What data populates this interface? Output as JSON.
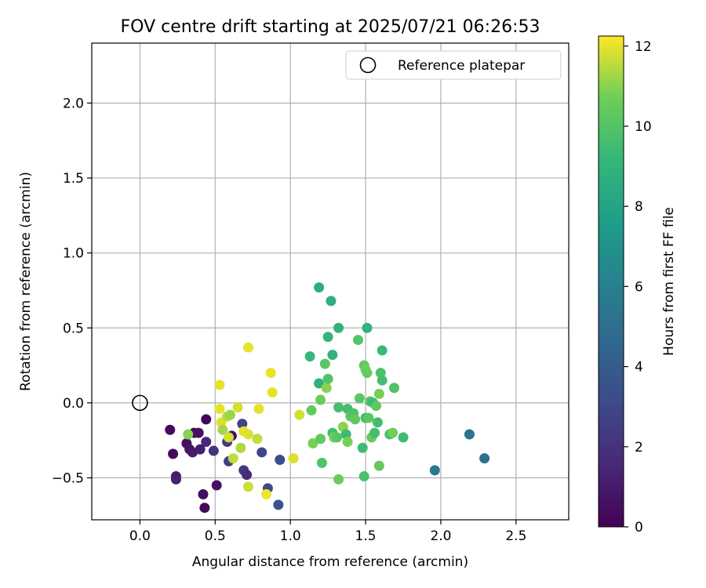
{
  "chart_data": {
    "type": "scatter",
    "title": "FOV centre drift starting at 2025/07/21 06:26:53",
    "xlabel": "Angular distance from reference (arcmin)",
    "ylabel": "Rotation from reference (arcmin)",
    "xlim": [
      -0.32,
      2.85
    ],
    "ylim": [
      -0.78,
      2.4
    ],
    "xticks": [
      "0.0",
      "0.5",
      "1.0",
      "1.5",
      "2.0",
      "2.5"
    ],
    "xtick_values": [
      0.0,
      0.5,
      1.0,
      1.5,
      2.0,
      2.5
    ],
    "yticks": [
      "−0.5",
      "0.0",
      "0.5",
      "1.0",
      "1.5",
      "2.0"
    ],
    "ytick_values": [
      -0.5,
      0.0,
      0.5,
      1.0,
      1.5,
      2.0
    ],
    "grid": true,
    "legend": {
      "position": "top-right",
      "entries": [
        "Reference platepar"
      ]
    },
    "reference_point": {
      "x": 0.0,
      "y": 0.0
    },
    "colorbar": {
      "label": "Hours from first FF file",
      "colormap": "viridis",
      "range": [
        0,
        12.25
      ],
      "ticks": [
        "0",
        "2",
        "4",
        "6",
        "8",
        "10",
        "12"
      ],
      "tick_values": [
        0,
        2,
        4,
        6,
        8,
        10,
        12
      ]
    },
    "points": [
      {
        "x": 0.2,
        "y": -0.18,
        "c": 0.3
      },
      {
        "x": 0.22,
        "y": -0.34,
        "c": 0.3
      },
      {
        "x": 0.24,
        "y": -0.49,
        "c": 0.9
      },
      {
        "x": 0.24,
        "y": -0.51,
        "c": 1.2
      },
      {
        "x": 0.31,
        "y": -0.27,
        "c": 0.6
      },
      {
        "x": 0.33,
        "y": -0.31,
        "c": 0.8
      },
      {
        "x": 0.35,
        "y": -0.33,
        "c": 1.0
      },
      {
        "x": 0.36,
        "y": -0.2,
        "c": 0.4
      },
      {
        "x": 0.39,
        "y": -0.2,
        "c": 0.6
      },
      {
        "x": 0.4,
        "y": -0.31,
        "c": 1.1
      },
      {
        "x": 0.42,
        "y": -0.61,
        "c": 0.5
      },
      {
        "x": 0.43,
        "y": -0.7,
        "c": 0.3
      },
      {
        "x": 0.44,
        "y": -0.11,
        "c": 0.2
      },
      {
        "x": 0.44,
        "y": -0.26,
        "c": 1.6
      },
      {
        "x": 0.49,
        "y": -0.32,
        "c": 2.0
      },
      {
        "x": 0.51,
        "y": -0.55,
        "c": 0.6
      },
      {
        "x": 0.58,
        "y": -0.26,
        "c": 2.5
      },
      {
        "x": 0.59,
        "y": -0.39,
        "c": 2.7
      },
      {
        "x": 0.61,
        "y": -0.22,
        "c": 0.4
      },
      {
        "x": 0.68,
        "y": -0.14,
        "c": 2.9
      },
      {
        "x": 0.69,
        "y": -0.45,
        "c": 2.2
      },
      {
        "x": 0.71,
        "y": -0.48,
        "c": 1.7
      },
      {
        "x": 0.81,
        "y": -0.33,
        "c": 3.0
      },
      {
        "x": 0.85,
        "y": -0.57,
        "c": 3.1
      },
      {
        "x": 0.92,
        "y": -0.68,
        "c": 3.5
      },
      {
        "x": 0.93,
        "y": -0.38,
        "c": 3.3
      },
      {
        "x": 0.32,
        "y": -0.21,
        "c": 11.0
      },
      {
        "x": 0.53,
        "y": 0.12,
        "c": 12.0
      },
      {
        "x": 0.53,
        "y": -0.04,
        "c": 12.0
      },
      {
        "x": 0.54,
        "y": -0.13,
        "c": 11.9
      },
      {
        "x": 0.55,
        "y": -0.18,
        "c": 11.3
      },
      {
        "x": 0.58,
        "y": -0.09,
        "c": 11.5
      },
      {
        "x": 0.59,
        "y": -0.23,
        "c": 11.8
      },
      {
        "x": 0.6,
        "y": -0.08,
        "c": 11.2
      },
      {
        "x": 0.62,
        "y": -0.37,
        "c": 11.6
      },
      {
        "x": 0.65,
        "y": -0.03,
        "c": 11.8
      },
      {
        "x": 0.67,
        "y": -0.3,
        "c": 11.4
      },
      {
        "x": 0.69,
        "y": -0.19,
        "c": 12.0
      },
      {
        "x": 0.72,
        "y": 0.37,
        "c": 12.0
      },
      {
        "x": 0.72,
        "y": -0.21,
        "c": 11.9
      },
      {
        "x": 0.72,
        "y": -0.56,
        "c": 11.7
      },
      {
        "x": 0.78,
        "y": -0.24,
        "c": 11.6
      },
      {
        "x": 0.79,
        "y": -0.04,
        "c": 12.0
      },
      {
        "x": 0.84,
        "y": -0.61,
        "c": 12.1
      },
      {
        "x": 0.87,
        "y": 0.2,
        "c": 12.0
      },
      {
        "x": 0.88,
        "y": 0.07,
        "c": 12.0
      },
      {
        "x": 1.02,
        "y": -0.37,
        "c": 11.9
      },
      {
        "x": 1.06,
        "y": -0.08,
        "c": 11.8
      },
      {
        "x": 1.13,
        "y": 0.31,
        "c": 9.2
      },
      {
        "x": 1.14,
        "y": -0.05,
        "c": 10.4
      },
      {
        "x": 1.15,
        "y": -0.27,
        "c": 10.8
      },
      {
        "x": 1.19,
        "y": 0.77,
        "c": 8.6
      },
      {
        "x": 1.19,
        "y": 0.13,
        "c": 8.8
      },
      {
        "x": 1.2,
        "y": 0.02,
        "c": 10.6
      },
      {
        "x": 1.2,
        "y": -0.24,
        "c": 10.3
      },
      {
        "x": 1.21,
        "y": -0.4,
        "c": 9.9
      },
      {
        "x": 1.23,
        "y": 0.26,
        "c": 10.2
      },
      {
        "x": 1.24,
        "y": 0.1,
        "c": 11.0
      },
      {
        "x": 1.25,
        "y": 0.44,
        "c": 9.0
      },
      {
        "x": 1.25,
        "y": 0.16,
        "c": 10.0
      },
      {
        "x": 1.27,
        "y": 0.68,
        "c": 8.7
      },
      {
        "x": 1.28,
        "y": 0.32,
        "c": 8.9
      },
      {
        "x": 1.28,
        "y": -0.2,
        "c": 9.6
      },
      {
        "x": 1.29,
        "y": -0.23,
        "c": 10.8
      },
      {
        "x": 1.31,
        "y": -0.23,
        "c": 10.1
      },
      {
        "x": 1.32,
        "y": 0.5,
        "c": 8.9
      },
      {
        "x": 1.32,
        "y": -0.03,
        "c": 9.7
      },
      {
        "x": 1.32,
        "y": -0.51,
        "c": 10.6
      },
      {
        "x": 1.35,
        "y": -0.16,
        "c": 11.0
      },
      {
        "x": 1.37,
        "y": -0.21,
        "c": 9.4
      },
      {
        "x": 1.38,
        "y": -0.04,
        "c": 9.6
      },
      {
        "x": 1.38,
        "y": -0.26,
        "c": 10.8
      },
      {
        "x": 1.4,
        "y": -0.09,
        "c": 10.2
      },
      {
        "x": 1.42,
        "y": -0.07,
        "c": 9.8
      },
      {
        "x": 1.43,
        "y": -0.11,
        "c": 10.4
      },
      {
        "x": 1.45,
        "y": 0.42,
        "c": 10.0
      },
      {
        "x": 1.46,
        "y": 0.03,
        "c": 10.2
      },
      {
        "x": 1.48,
        "y": -0.3,
        "c": 9.4
      },
      {
        "x": 1.49,
        "y": -0.49,
        "c": 9.8
      },
      {
        "x": 1.49,
        "y": 0.25,
        "c": 10.4
      },
      {
        "x": 1.5,
        "y": 0.22,
        "c": 10.7
      },
      {
        "x": 1.5,
        "y": -0.1,
        "c": 9.5
      },
      {
        "x": 1.51,
        "y": 0.5,
        "c": 8.9
      },
      {
        "x": 1.51,
        "y": 0.2,
        "c": 10.5
      },
      {
        "x": 1.52,
        "y": -0.1,
        "c": 10.2
      },
      {
        "x": 1.53,
        "y": 0.01,
        "c": 10.0
      },
      {
        "x": 1.54,
        "y": -0.23,
        "c": 10.5
      },
      {
        "x": 1.55,
        "y": 0.0,
        "c": 9.3
      },
      {
        "x": 1.56,
        "y": -0.2,
        "c": 9.6
      },
      {
        "x": 1.57,
        "y": -0.02,
        "c": 10.3
      },
      {
        "x": 1.58,
        "y": -0.13,
        "c": 9.6
      },
      {
        "x": 1.59,
        "y": 0.06,
        "c": 10.8
      },
      {
        "x": 1.59,
        "y": -0.42,
        "c": 10.4
      },
      {
        "x": 1.6,
        "y": 0.2,
        "c": 9.8
      },
      {
        "x": 1.61,
        "y": 0.15,
        "c": 9.6
      },
      {
        "x": 1.61,
        "y": 0.35,
        "c": 9.3
      },
      {
        "x": 1.66,
        "y": -0.21,
        "c": 9.7
      },
      {
        "x": 1.68,
        "y": -0.2,
        "c": 10.7
      },
      {
        "x": 1.69,
        "y": 0.1,
        "c": 9.9
      },
      {
        "x": 1.75,
        "y": -0.23,
        "c": 9.4
      },
      {
        "x": 1.96,
        "y": -0.45,
        "c": 5.6
      },
      {
        "x": 2.19,
        "y": -0.21,
        "c": 5.3
      },
      {
        "x": 2.29,
        "y": -0.37,
        "c": 5.0
      }
    ]
  }
}
